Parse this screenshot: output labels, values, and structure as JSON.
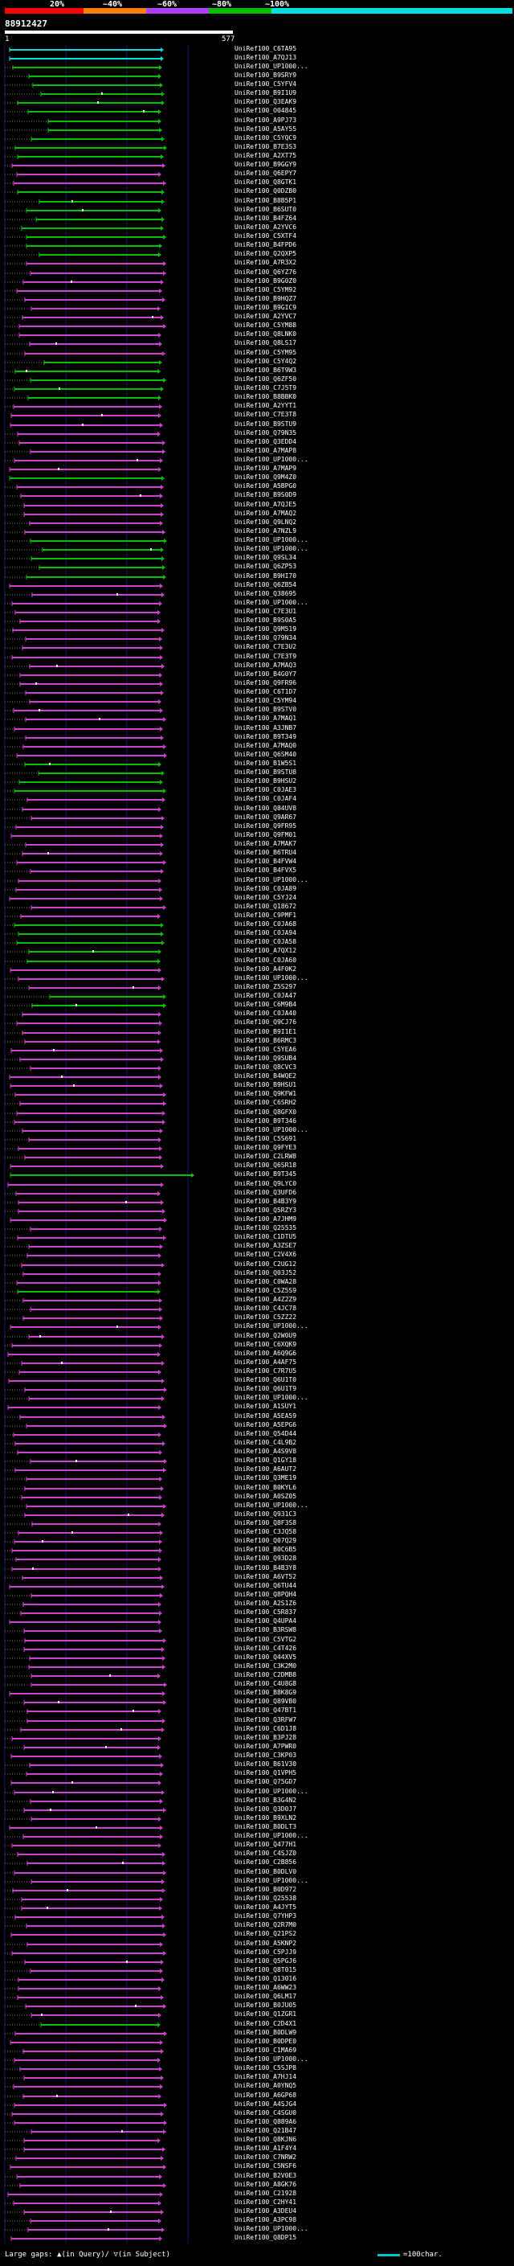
{
  "legend": {
    "segments": [
      {
        "label": "20%",
        "color": "#ff0000"
      },
      {
        "label": "~40%",
        "color": "#ff8000"
      },
      {
        "label": "~60%",
        "color": "#b040ff"
      },
      {
        "label": "~80%",
        "color": "#00c000"
      },
      {
        "label": "~100%",
        "color": "#00e0e0"
      }
    ]
  },
  "query": {
    "id": "88912427",
    "start": "1",
    "end": "577"
  },
  "colors": {
    "cyan": "#00e0e0",
    "green": "#00c000",
    "magenta": "#d040d0",
    "grid": "#1a1a66",
    "dash": "#ffffff"
  },
  "hits": [
    {
      "id": "UniRef100_C6TA95",
      "c": "cyan"
    },
    {
      "id": "UniRef100_A7QJ13",
      "c": "cyan"
    },
    {
      "id": "UniRef100_UP1000...",
      "c": "green"
    },
    {
      "id": "UniRef100_B9SRY9",
      "c": "green"
    },
    {
      "id": "UniRef100_C5YFV4",
      "c": "green"
    },
    {
      "id": "UniRef100_B9I1U9",
      "c": "green"
    },
    {
      "id": "UniRef100_Q3EAK9",
      "c": "green"
    },
    {
      "id": "UniRef100_O04845",
      "c": "green"
    },
    {
      "id": "UniRef100_A9PJ73",
      "c": "green"
    },
    {
      "id": "UniRef100_A5AY55",
      "c": "green"
    },
    {
      "id": "UniRef100_C5YQC9",
      "c": "green"
    },
    {
      "id": "UniRef100_B7E3S3",
      "c": "green"
    },
    {
      "id": "UniRef100_A2XT75",
      "c": "green"
    },
    {
      "id": "UniRef100_B9GGY9",
      "c": "magenta"
    },
    {
      "id": "UniRef100_Q6EPY7",
      "c": "magenta"
    },
    {
      "id": "UniRef100_Q8GTK1",
      "c": "magenta"
    },
    {
      "id": "UniRef100_Q0DZB0",
      "c": "green"
    },
    {
      "id": "UniRef100_B8B5P1",
      "c": "green"
    },
    {
      "id": "UniRef100_B6SUT0",
      "c": "green"
    },
    {
      "id": "UniRef100_B4FZ64",
      "c": "green"
    },
    {
      "id": "UniRef100_A2YVC6",
      "c": "green"
    },
    {
      "id": "UniRef100_C5XTF4",
      "c": "green"
    },
    {
      "id": "UniRef100_B4FPD6",
      "c": "green"
    },
    {
      "id": "UniRef100_Q2QXP5",
      "c": "green"
    },
    {
      "id": "UniRef100_A7R3X2",
      "c": "magenta"
    },
    {
      "id": "UniRef100_Q6YZ76",
      "c": "magenta"
    },
    {
      "id": "UniRef100_B9G0Z0",
      "c": "magenta"
    },
    {
      "id": "UniRef100_C5YM92",
      "c": "magenta"
    },
    {
      "id": "UniRef100_B9HQZ7",
      "c": "magenta"
    },
    {
      "id": "UniRef100_B9GIC9",
      "c": "magenta"
    },
    {
      "id": "UniRef100_A2YVC7",
      "c": "magenta"
    },
    {
      "id": "UniRef100_C5YM88",
      "c": "magenta"
    },
    {
      "id": "UniRef100_Q8LNK0",
      "c": "magenta"
    },
    {
      "id": "UniRef100_Q8LS17",
      "c": "magenta"
    },
    {
      "id": "UniRef100_C5YM95",
      "c": "magenta"
    },
    {
      "id": "UniRef100_C5Y4Q2",
      "c": "green"
    },
    {
      "id": "UniRef100_B6T9W3",
      "c": "green"
    },
    {
      "id": "UniRef100_Q6ZF50",
      "c": "green"
    },
    {
      "id": "UniRef100_C7J5T9",
      "c": "green"
    },
    {
      "id": "UniRef100_B8BBK0",
      "c": "green"
    },
    {
      "id": "UniRef100_A2YYT1",
      "c": "magenta"
    },
    {
      "id": "UniRef100_C7E3T8",
      "c": "magenta"
    },
    {
      "id": "UniRef100_B9STU9",
      "c": "magenta"
    },
    {
      "id": "UniRef100_Q79N35",
      "c": "magenta"
    },
    {
      "id": "UniRef100_Q3EDD4",
      "c": "magenta"
    },
    {
      "id": "UniRef100_A7MAP8",
      "c": "magenta"
    },
    {
      "id": "UniRef100_UP1000...",
      "c": "magenta"
    },
    {
      "id": "UniRef100_A7MAP9",
      "c": "magenta"
    },
    {
      "id": "UniRef100_Q9M4Z0",
      "c": "green"
    },
    {
      "id": "UniRef100_A5BPG0",
      "c": "magenta"
    },
    {
      "id": "UniRef100_B9S0D9",
      "c": "magenta"
    },
    {
      "id": "UniRef100_A7QJE5",
      "c": "magenta"
    },
    {
      "id": "UniRef100_A7MAQ2",
      "c": "magenta"
    },
    {
      "id": "UniRef100_Q9LNQ2",
      "c": "magenta"
    },
    {
      "id": "UniRef100_A7NZL9",
      "c": "magenta"
    },
    {
      "id": "UniRef100_UP1000...",
      "c": "green"
    },
    {
      "id": "UniRef100_UP1000...",
      "c": "green"
    },
    {
      "id": "UniRef100_Q9SL34",
      "c": "green"
    },
    {
      "id": "UniRef100_Q6ZP53",
      "c": "green"
    },
    {
      "id": "UniRef100_B9HI70",
      "c": "green"
    },
    {
      "id": "UniRef100_Q6ZB54",
      "c": "magenta"
    },
    {
      "id": "UniRef100_Q38695",
      "c": "magenta"
    },
    {
      "id": "UniRef100_UP1000...",
      "c": "magenta"
    },
    {
      "id": "UniRef100_C7E3U1",
      "c": "magenta"
    },
    {
      "id": "UniRef100_B9S0A5",
      "c": "magenta"
    },
    {
      "id": "UniRef100_Q9M519",
      "c": "magenta"
    },
    {
      "id": "UniRef100_Q79N34",
      "c": "magenta"
    },
    {
      "id": "UniRef100_C7E3U2",
      "c": "magenta"
    },
    {
      "id": "UniRef100_C7E3T9",
      "c": "magenta"
    },
    {
      "id": "UniRef100_A7MAQ3",
      "c": "magenta"
    },
    {
      "id": "UniRef100_B4G0Y7",
      "c": "magenta"
    },
    {
      "id": "UniRef100_Q9FR96",
      "c": "magenta"
    },
    {
      "id": "UniRef100_C6T1D7",
      "c": "magenta"
    },
    {
      "id": "UniRef100_C5YM94",
      "c": "magenta"
    },
    {
      "id": "UniRef100_B9STV0",
      "c": "magenta"
    },
    {
      "id": "UniRef100_A7MAQ1",
      "c": "magenta"
    },
    {
      "id": "UniRef100_A3JNB7",
      "c": "magenta"
    },
    {
      "id": "UniRef100_B9T349",
      "c": "magenta"
    },
    {
      "id": "UniRef100_A7MAQ0",
      "c": "magenta"
    },
    {
      "id": "UniRef100_Q6SM40",
      "c": "magenta"
    },
    {
      "id": "UniRef100_B1W5S1",
      "c": "green"
    },
    {
      "id": "UniRef100_B9STU8",
      "c": "green"
    },
    {
      "id": "UniRef100_B9HSU2",
      "c": "green"
    },
    {
      "id": "UniRef100_C0JAE3",
      "c": "green"
    },
    {
      "id": "UniRef100_C0JAF4",
      "c": "magenta"
    },
    {
      "id": "UniRef100_Q84UV8",
      "c": "magenta"
    },
    {
      "id": "UniRef100_Q9AR67",
      "c": "magenta"
    },
    {
      "id": "UniRef100_Q9FR95",
      "c": "magenta"
    },
    {
      "id": "UniRef100_Q9FM01",
      "c": "magenta"
    },
    {
      "id": "UniRef100_A7MAK7",
      "c": "magenta"
    },
    {
      "id": "UniRef100_B6TRU4",
      "c": "magenta"
    },
    {
      "id": "UniRef100_B4FVW4",
      "c": "magenta"
    },
    {
      "id": "UniRef100_B4FVX5",
      "c": "magenta"
    },
    {
      "id": "UniRef100_UP1000...",
      "c": "magenta"
    },
    {
      "id": "UniRef100_C0JA89",
      "c": "magenta"
    },
    {
      "id": "UniRef100_C5YJ24",
      "c": "magenta"
    },
    {
      "id": "UniRef100_Q18672",
      "c": "magenta"
    },
    {
      "id": "UniRef100_C9PMF1",
      "c": "magenta"
    },
    {
      "id": "UniRef100_C0JA68",
      "c": "green"
    },
    {
      "id": "UniRef100_C0JA94",
      "c": "green"
    },
    {
      "id": "UniRef100_C0JA58",
      "c": "green"
    },
    {
      "id": "UniRef100_A7QX12",
      "c": "green"
    },
    {
      "id": "UniRef100_C0JA60",
      "c": "green"
    },
    {
      "id": "UniRef100_A4F0K2",
      "c": "magenta"
    },
    {
      "id": "UniRef100_UP1000...",
      "c": "magenta"
    },
    {
      "id": "UniRef100_Z5S297",
      "c": "magenta"
    },
    {
      "id": "UniRef100_C0JA47",
      "c": "green"
    },
    {
      "id": "UniRef100_C6M9B4",
      "c": "green"
    },
    {
      "id": "UniRef100_C0JA40",
      "c": "magenta"
    },
    {
      "id": "UniRef100_Q9CJ76",
      "c": "magenta"
    },
    {
      "id": "UniRef100_B9I1E1",
      "c": "magenta"
    },
    {
      "id": "UniRef100_B6RMC3",
      "c": "magenta"
    },
    {
      "id": "UniRef100_C5YEA6",
      "c": "magenta"
    },
    {
      "id": "UniRef100_Q9SUB4",
      "c": "magenta"
    },
    {
      "id": "UniRef100_Q8CVC3",
      "c": "magenta"
    },
    {
      "id": "UniRef100_B4WQE2",
      "c": "magenta"
    },
    {
      "id": "UniRef100_B9HSU1",
      "c": "magenta"
    },
    {
      "id": "UniRef100_Q9KFW1",
      "c": "magenta"
    },
    {
      "id": "UniRef100_C6SRH2",
      "c": "magenta"
    },
    {
      "id": "UniRef100_Q8GFX0",
      "c": "magenta"
    },
    {
      "id": "UniRef100_B9T346",
      "c": "magenta"
    },
    {
      "id": "UniRef100_UP1000...",
      "c": "magenta"
    },
    {
      "id": "UniRef100_C5S691",
      "c": "magenta"
    },
    {
      "id": "UniRef100_Q9FYE3",
      "c": "magenta"
    },
    {
      "id": "UniRef100_C2LRW8",
      "c": "magenta"
    },
    {
      "id": "UniRef100_Q6SR18",
      "c": "magenta"
    },
    {
      "id": "UniRef100_B9T345",
      "c": "green"
    },
    {
      "id": "UniRef100_Q9LYC0",
      "c": "magenta"
    },
    {
      "id": "UniRef100_Q3UFD6",
      "c": "magenta"
    },
    {
      "id": "UniRef100_B4B3Y9",
      "c": "magenta"
    },
    {
      "id": "UniRef100_Q5RZY3",
      "c": "magenta"
    },
    {
      "id": "UniRef100_A7JHM9",
      "c": "magenta"
    },
    {
      "id": "UniRef100_Q25535",
      "c": "magenta"
    },
    {
      "id": "UniRef100_C1DTU5",
      "c": "magenta"
    },
    {
      "id": "UniRef100_A3ZSE7",
      "c": "magenta"
    },
    {
      "id": "UniRef100_C2V4X6",
      "c": "magenta"
    },
    {
      "id": "UniRef100_C2UG12",
      "c": "magenta"
    },
    {
      "id": "UniRef100_Q03J52",
      "c": "magenta"
    },
    {
      "id": "UniRef100_C0WA28",
      "c": "magenta"
    },
    {
      "id": "UniRef100_C5Z5S9",
      "c": "green"
    },
    {
      "id": "UniRef100_A4Z2Z9",
      "c": "magenta"
    },
    {
      "id": "UniRef100_C4JC78",
      "c": "magenta"
    },
    {
      "id": "UniRef100_C5ZZ22",
      "c": "magenta"
    },
    {
      "id": "UniRef100_UP1000...",
      "c": "magenta"
    },
    {
      "id": "UniRef100_Q2W0U9",
      "c": "magenta"
    },
    {
      "id": "UniRef100_C6XQK9",
      "c": "magenta"
    },
    {
      "id": "UniRef100_A6Q9G6",
      "c": "magenta"
    },
    {
      "id": "UniRef100_A4AF75",
      "c": "magenta"
    },
    {
      "id": "UniRef100_C7R7U5",
      "c": "magenta"
    },
    {
      "id": "UniRef100_Q6U1T0",
      "c": "magenta"
    },
    {
      "id": "UniRef100_Q6U1T9",
      "c": "magenta"
    },
    {
      "id": "UniRef100_UP1000...",
      "c": "magenta"
    },
    {
      "id": "UniRef100_A1SUY1",
      "c": "magenta"
    },
    {
      "id": "UniRef100_A5EA59",
      "c": "magenta"
    },
    {
      "id": "UniRef100_A5EPG6",
      "c": "magenta"
    },
    {
      "id": "UniRef100_Q54D44",
      "c": "magenta"
    },
    {
      "id": "UniRef100_C4L9B2",
      "c": "magenta"
    },
    {
      "id": "UniRef100_A4S9V8",
      "c": "magenta"
    },
    {
      "id": "UniRef100_Q1GY18",
      "c": "magenta"
    },
    {
      "id": "UniRef100_A6AUT2",
      "c": "magenta"
    },
    {
      "id": "UniRef100_Q3ME19",
      "c": "magenta"
    },
    {
      "id": "UniRef100_B0KYL6",
      "c": "magenta"
    },
    {
      "id": "UniRef100_A0SZ05",
      "c": "magenta"
    },
    {
      "id": "UniRef100_UP1000...",
      "c": "magenta"
    },
    {
      "id": "UniRef100_Q931C3",
      "c": "magenta"
    },
    {
      "id": "UniRef100_Q8F3S8",
      "c": "magenta"
    },
    {
      "id": "UniRef100_C3JQ58",
      "c": "magenta"
    },
    {
      "id": "UniRef100_Q07Q29",
      "c": "magenta"
    },
    {
      "id": "UniRef100_B0C6B5",
      "c": "magenta"
    },
    {
      "id": "UniRef100_Q93D28",
      "c": "magenta"
    },
    {
      "id": "UniRef100_B4B3Y8",
      "c": "magenta"
    },
    {
      "id": "UniRef100_A6VT52",
      "c": "magenta"
    },
    {
      "id": "UniRef100_Q6TU44",
      "c": "magenta"
    },
    {
      "id": "UniRef100_Q8PQH4",
      "c": "magenta"
    },
    {
      "id": "UniRef100_A2S1Z6",
      "c": "magenta"
    },
    {
      "id": "UniRef100_C5R837",
      "c": "magenta"
    },
    {
      "id": "UniRef100_Q4UPA4",
      "c": "magenta"
    },
    {
      "id": "UniRef100_B3RSW8",
      "c": "magenta"
    },
    {
      "id": "UniRef100_C5VTG2",
      "c": "magenta"
    },
    {
      "id": "UniRef100_C4T426",
      "c": "magenta"
    },
    {
      "id": "UniRef100_Q44XV5",
      "c": "magenta"
    },
    {
      "id": "UniRef100_C3K2M0",
      "c": "magenta"
    },
    {
      "id": "UniRef100_C2DMB8",
      "c": "magenta"
    },
    {
      "id": "UniRef100_C4U8G8",
      "c": "magenta"
    },
    {
      "id": "UniRef100_B8K8G9",
      "c": "magenta"
    },
    {
      "id": "UniRef100_Q89VB0",
      "c": "magenta"
    },
    {
      "id": "UniRef100_Q47BT1",
      "c": "magenta"
    },
    {
      "id": "UniRef100_Q3RFW7",
      "c": "magenta"
    },
    {
      "id": "UniRef100_C6D1J8",
      "c": "magenta"
    },
    {
      "id": "UniRef100_B3PJ28",
      "c": "magenta"
    },
    {
      "id": "UniRef100_A7PWR0",
      "c": "magenta"
    },
    {
      "id": "UniRef100_C3KP03",
      "c": "magenta"
    },
    {
      "id": "UniRef100_B61V30",
      "c": "magenta"
    },
    {
      "id": "UniRef100_Q1VPH5",
      "c": "magenta"
    },
    {
      "id": "UniRef100_Q75GD7",
      "c": "magenta"
    },
    {
      "id": "UniRef100_UP1000...",
      "c": "magenta"
    },
    {
      "id": "UniRef100_B3G4N2",
      "c": "magenta"
    },
    {
      "id": "UniRef100_Q3D0J7",
      "c": "magenta"
    },
    {
      "id": "UniRef100_B9XLN2",
      "c": "magenta"
    },
    {
      "id": "UniRef100_B0DLT3",
      "c": "magenta"
    },
    {
      "id": "UniRef100_UP1000...",
      "c": "magenta"
    },
    {
      "id": "UniRef100_Q477H1",
      "c": "magenta"
    },
    {
      "id": "UniRef100_C4SJZ0",
      "c": "magenta"
    },
    {
      "id": "UniRef100_C2B856",
      "c": "magenta"
    },
    {
      "id": "UniRef100_B0DLV0",
      "c": "magenta"
    },
    {
      "id": "UniRef100_UP1000...",
      "c": "magenta"
    },
    {
      "id": "UniRef100_B0D972",
      "c": "magenta"
    },
    {
      "id": "UniRef100_Q25538",
      "c": "magenta"
    },
    {
      "id": "UniRef100_A4JYT5",
      "c": "magenta"
    },
    {
      "id": "UniRef100_Q7YHP3",
      "c": "magenta"
    },
    {
      "id": "UniRef100_Q2R7M0",
      "c": "magenta"
    },
    {
      "id": "UniRef100_Q21PS2",
      "c": "magenta"
    },
    {
      "id": "UniRef100_A5KNP2",
      "c": "magenta"
    },
    {
      "id": "UniRef100_C5PJJ9",
      "c": "magenta"
    },
    {
      "id": "UniRef100_Q5PGJ6",
      "c": "magenta"
    },
    {
      "id": "UniRef100_Q8T015",
      "c": "magenta"
    },
    {
      "id": "UniRef100_Q13016",
      "c": "magenta"
    },
    {
      "id": "UniRef100_A6WW23",
      "c": "magenta"
    },
    {
      "id": "UniRef100_Q6LM17",
      "c": "magenta"
    },
    {
      "id": "UniRef100_B0JU05",
      "c": "magenta"
    },
    {
      "id": "UniRef100_Q1ZGR1",
      "c": "magenta"
    },
    {
      "id": "UniRef100_C2D4X1",
      "c": "green"
    },
    {
      "id": "UniRef100_B0DLW9",
      "c": "magenta"
    },
    {
      "id": "UniRef100_B0DPE0",
      "c": "magenta"
    },
    {
      "id": "UniRef100_C1MA69",
      "c": "magenta"
    },
    {
      "id": "UniRef100_UP1000...",
      "c": "magenta"
    },
    {
      "id": "UniRef100_C5SJP8",
      "c": "magenta"
    },
    {
      "id": "UniRef100_A7HJ14",
      "c": "magenta"
    },
    {
      "id": "UniRef100_A0YNQ5",
      "c": "magenta"
    },
    {
      "id": "UniRef100_A6GP68",
      "c": "magenta"
    },
    {
      "id": "UniRef100_A4SJG4",
      "c": "magenta"
    },
    {
      "id": "UniRef100_C4SGU0",
      "c": "magenta"
    },
    {
      "id": "UniRef100_Q889A6",
      "c": "magenta"
    },
    {
      "id": "UniRef100_Q21B47",
      "c": "magenta"
    },
    {
      "id": "UniRef100_Q8KJN6",
      "c": "magenta"
    },
    {
      "id": "UniRef100_A1F4Y4",
      "c": "magenta"
    },
    {
      "id": "UniRef100_C7NRW2",
      "c": "magenta"
    },
    {
      "id": "UniRef100_C5NSF6",
      "c": "magenta"
    },
    {
      "id": "UniRef100_B2V0E3",
      "c": "magenta"
    },
    {
      "id": "UniRef100_A8GK76",
      "c": "magenta"
    },
    {
      "id": "UniRef100_C21928",
      "c": "magenta"
    },
    {
      "id": "UniRef100_C2HY41",
      "c": "magenta"
    },
    {
      "id": "UniRef100_A3DEU4",
      "c": "magenta"
    },
    {
      "id": "UniRef100_A3PC98",
      "c": "magenta"
    },
    {
      "id": "UniRef100_UP1000...",
      "c": "magenta"
    },
    {
      "id": "UniRef100_Q8DP15",
      "c": "magenta"
    }
  ],
  "footer": {
    "large_gaps": "Large gaps:",
    "in_query_glyph": "▲",
    "in_query_text": "(in Query)/",
    "in_subject_glyph": "▽",
    "in_subject_text": "(in Subject)",
    "scale_text": "=100char."
  }
}
